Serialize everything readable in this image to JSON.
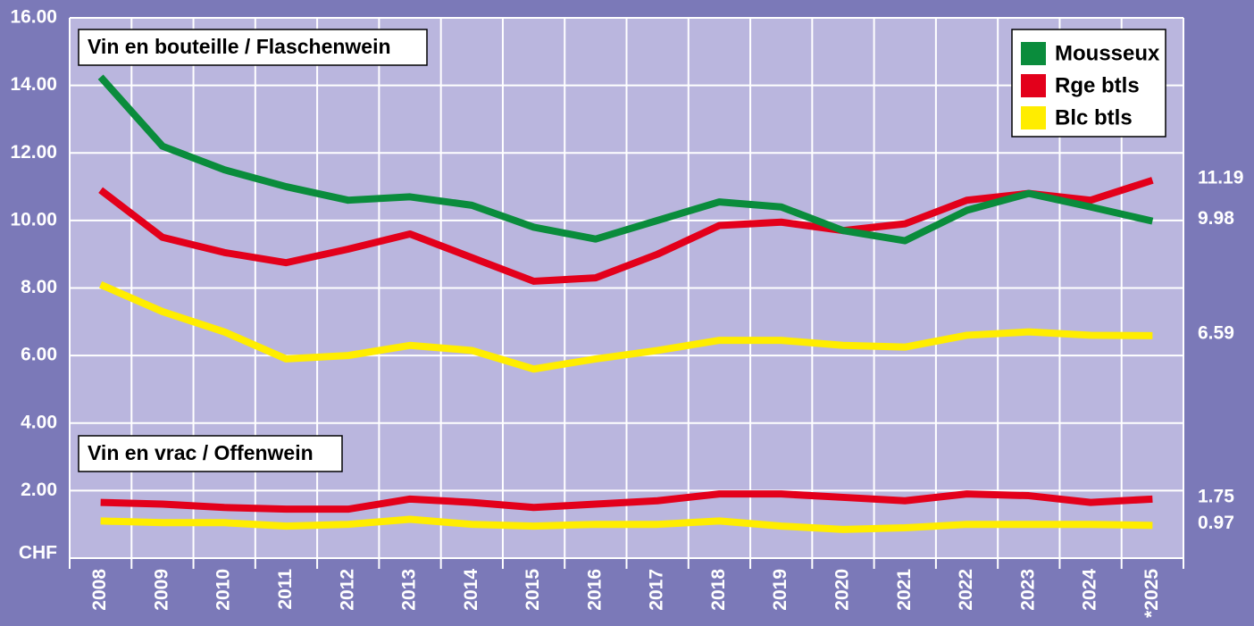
{
  "chart_data": {
    "type": "line",
    "annotations": [
      "Vin en bouteille / Flaschenwein",
      "Vin en vrac / Offenwein"
    ],
    "categories": [
      "2008",
      "2009",
      "2010",
      "2011",
      "2012",
      "2013",
      "2014",
      "2015",
      "2016",
      "2017",
      "2018",
      "2019",
      "2020",
      "2021",
      "2022",
      "2023",
      "2024",
      "*2025"
    ],
    "series": [
      {
        "name": "Mousseux",
        "color": "#0a8c3c",
        "values": [
          14.25,
          12.2,
          11.5,
          11.0,
          10.6,
          10.7,
          10.45,
          9.8,
          9.45,
          10.0,
          10.55,
          10.4,
          9.7,
          9.4,
          10.3,
          10.8,
          10.4,
          9.98
        ]
      },
      {
        "name": "Rge btls",
        "color": "#e3001b",
        "values": [
          10.9,
          9.5,
          9.05,
          8.75,
          9.15,
          9.6,
          8.9,
          8.2,
          8.3,
          9.0,
          9.85,
          9.95,
          9.7,
          9.9,
          10.6,
          10.8,
          10.6,
          11.19
        ]
      },
      {
        "name": "Blc btls",
        "color": "#ffed00",
        "values": [
          8.1,
          7.3,
          6.7,
          5.9,
          6.0,
          6.3,
          6.15,
          5.6,
          5.9,
          6.15,
          6.45,
          6.45,
          6.3,
          6.25,
          6.6,
          6.7,
          6.6,
          6.59
        ]
      },
      {
        "color": "#e3001b",
        "values": [
          1.65,
          1.6,
          1.5,
          1.45,
          1.45,
          1.75,
          1.65,
          1.5,
          1.6,
          1.7,
          1.9,
          1.9,
          1.8,
          1.7,
          1.9,
          1.85,
          1.65,
          1.75
        ]
      },
      {
        "color": "#ffed00",
        "values": [
          1.1,
          1.05,
          1.05,
          0.95,
          1.0,
          1.15,
          1.0,
          0.95,
          1.0,
          1.0,
          1.1,
          0.95,
          0.85,
          0.9,
          1.0,
          1.0,
          1.0,
          0.97
        ]
      }
    ],
    "end_labels": true,
    "ylim": [
      0,
      16
    ],
    "yticks": [
      {
        "value": 0,
        "label": "CHF"
      },
      {
        "value": 2,
        "label": "2.00"
      },
      {
        "value": 4,
        "label": "4.00"
      },
      {
        "value": 6,
        "label": "6.00"
      },
      {
        "value": 8,
        "label": "8.00"
      },
      {
        "value": 10,
        "label": "10.00"
      },
      {
        "value": 12,
        "label": "12.00"
      },
      {
        "value": 14,
        "label": "14.00"
      },
      {
        "value": 16,
        "label": "16.00"
      }
    ],
    "grid": true,
    "legend": "top-right"
  }
}
